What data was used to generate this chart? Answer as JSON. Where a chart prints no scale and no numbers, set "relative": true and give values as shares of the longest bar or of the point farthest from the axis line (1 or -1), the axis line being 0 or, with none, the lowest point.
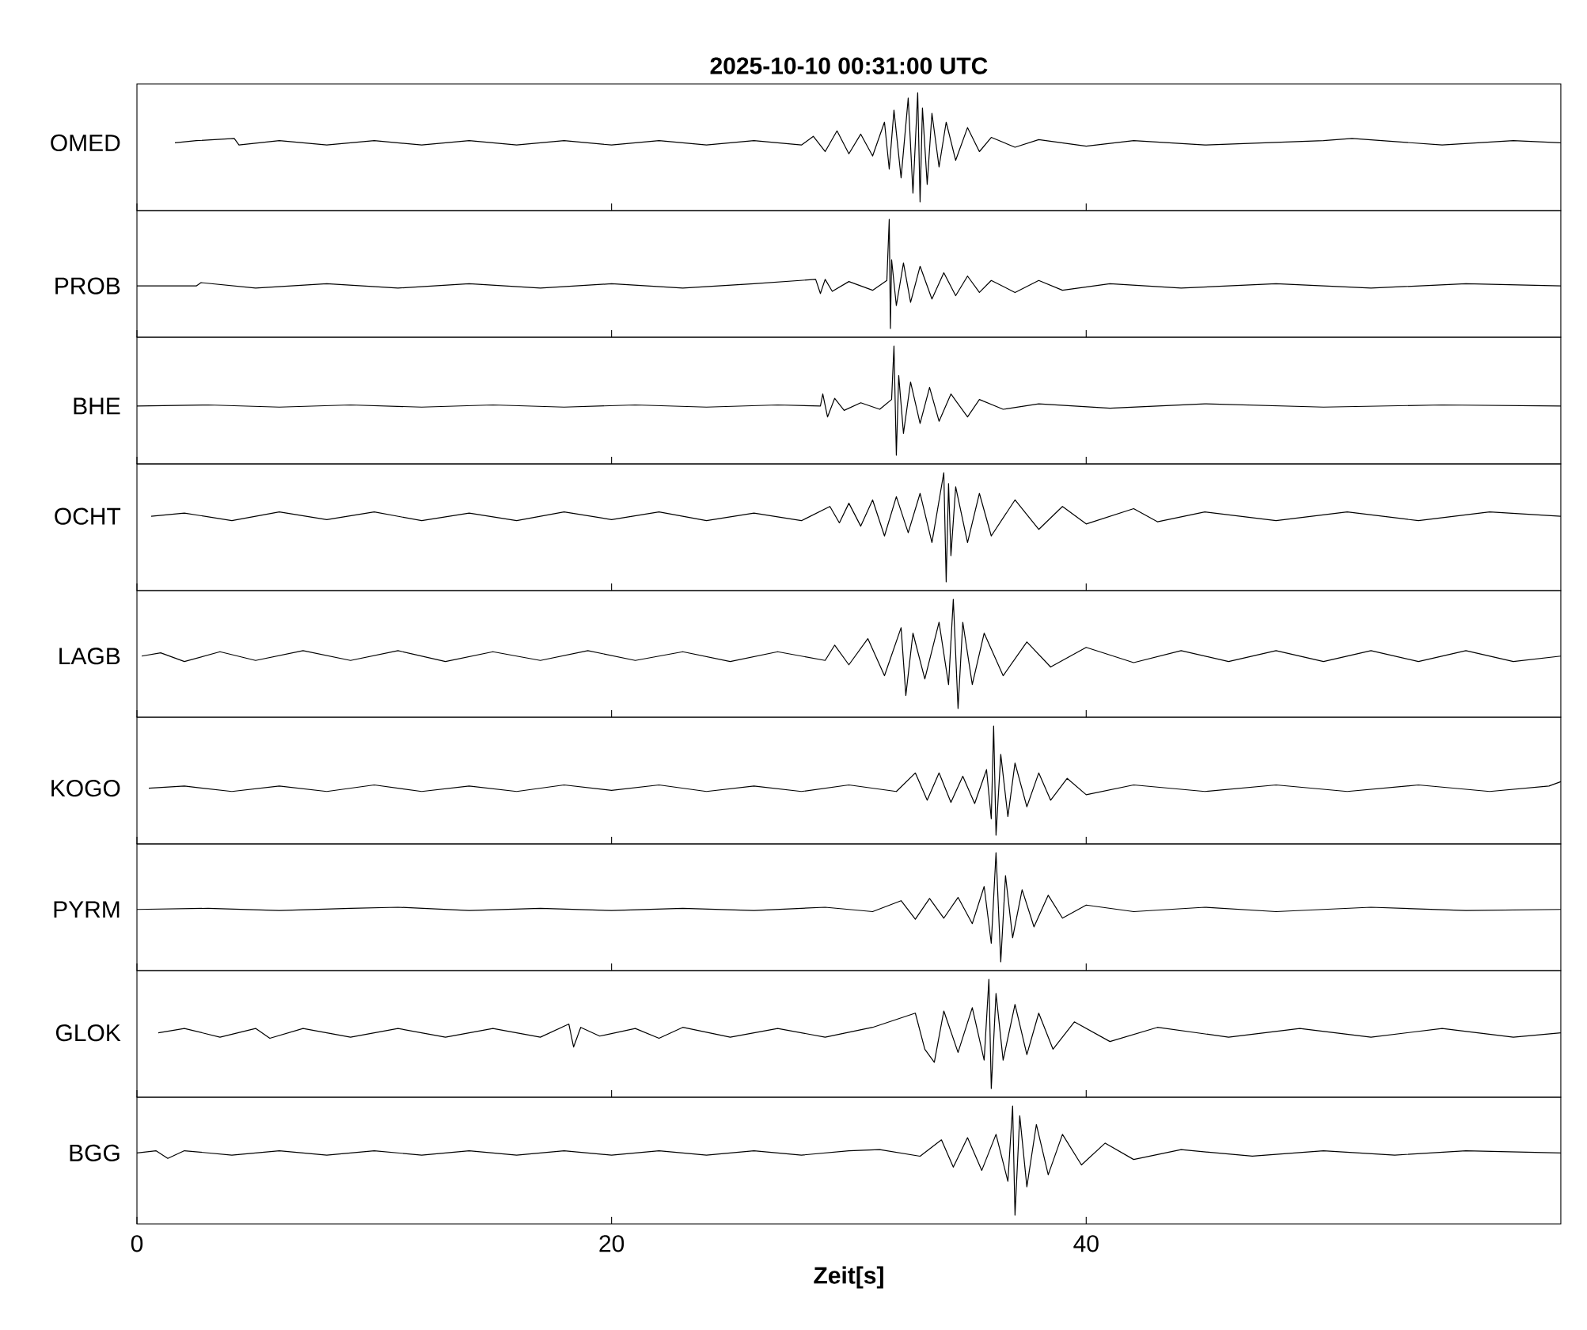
{
  "chart_data": [
    {
      "type": "line",
      "relative": true,
      "title": "2025-10-10  00:31:00 UTC",
      "xlim": [
        0,
        60
      ],
      "xticks": [
        0,
        20,
        40
      ],
      "tick_labels": false,
      "series": [
        {
          "name": "OMED",
          "color": "#000000",
          "x": [
            1.6,
            2.5,
            4.1,
            4.3,
            6,
            8,
            10,
            12,
            14,
            16,
            18,
            20,
            22,
            24,
            26,
            28,
            28.5,
            29,
            29.5,
            30,
            30.5,
            31,
            31.5,
            31.7,
            31.9,
            32.2,
            32.5,
            32.7,
            32.9,
            33.0,
            33.1,
            33.3,
            33.5,
            33.8,
            34.1,
            34.5,
            35,
            35.5,
            36,
            37,
            38,
            40,
            42,
            45,
            50,
            51.2,
            55,
            58,
            60
          ],
          "values": [
            0.54,
            0.56,
            0.58,
            0.52,
            0.56,
            0.52,
            0.56,
            0.52,
            0.56,
            0.52,
            0.56,
            0.52,
            0.56,
            0.52,
            0.56,
            0.52,
            0.6,
            0.46,
            0.65,
            0.44,
            0.62,
            0.42,
            0.73,
            0.3,
            0.84,
            0.22,
            0.95,
            0.08,
            1,
            0,
            0.86,
            0.16,
            0.81,
            0.32,
            0.73,
            0.38,
            0.68,
            0.46,
            0.59,
            0.5,
            0.57,
            0.51,
            0.56,
            0.52,
            0.56,
            0.58,
            0.52,
            0.56,
            0.54
          ]
        }
      ]
    },
    {
      "type": "line",
      "relative": true,
      "xlim": [
        0,
        60
      ],
      "xticks": [
        0,
        20,
        40
      ],
      "tick_labels": false,
      "series": [
        {
          "name": "PROB",
          "color": "#000000",
          "x": [
            0,
            2.5,
            2.7,
            5,
            8,
            11,
            14,
            17,
            20,
            23,
            26,
            28.6,
            28.8,
            29,
            29.3,
            30,
            31,
            31.6,
            31.7,
            31.75,
            31.8,
            32,
            32.3,
            32.6,
            33,
            33.5,
            34,
            34.5,
            35,
            35.5,
            36,
            37,
            38,
            39,
            41,
            44,
            48,
            52,
            56,
            60
          ],
          "values": [
            0.39,
            0.39,
            0.42,
            0.37,
            0.41,
            0.37,
            0.41,
            0.37,
            0.41,
            0.37,
            0.41,
            0.45,
            0.32,
            0.45,
            0.34,
            0.43,
            0.35,
            0.44,
            1,
            0,
            0.63,
            0.21,
            0.6,
            0.24,
            0.57,
            0.27,
            0.51,
            0.3,
            0.48,
            0.33,
            0.44,
            0.33,
            0.44,
            0.35,
            0.41,
            0.37,
            0.41,
            0.37,
            0.41,
            0.39
          ]
        }
      ]
    },
    {
      "type": "line",
      "relative": true,
      "xlim": [
        0,
        60
      ],
      "xticks": [
        0,
        20,
        40
      ],
      "tick_labels": false,
      "series": [
        {
          "name": "BHE",
          "color": "#000000",
          "x": [
            0,
            3,
            6,
            9,
            12,
            15,
            18,
            21,
            24,
            27,
            28.8,
            28.9,
            29.1,
            29.4,
            29.8,
            30.5,
            31.3,
            31.8,
            31.9,
            32.0,
            32.1,
            32.3,
            32.6,
            33,
            33.4,
            33.8,
            34.3,
            35,
            35.5,
            36.5,
            38,
            41,
            45,
            50,
            55,
            60
          ],
          "values": [
            0.45,
            0.46,
            0.44,
            0.46,
            0.44,
            0.46,
            0.44,
            0.46,
            0.44,
            0.46,
            0.45,
            0.56,
            0.35,
            0.52,
            0.41,
            0.48,
            0.42,
            0.51,
            1,
            0,
            0.73,
            0.2,
            0.67,
            0.29,
            0.62,
            0.31,
            0.56,
            0.35,
            0.51,
            0.42,
            0.47,
            0.43,
            0.47,
            0.44,
            0.46,
            0.45
          ]
        }
      ]
    },
    {
      "type": "line",
      "relative": true,
      "xlim": [
        0,
        60
      ],
      "xticks": [
        0,
        20,
        40
      ],
      "tick_labels": false,
      "series": [
        {
          "name": "OCHT",
          "color": "#000000",
          "x": [
            0.6,
            2,
            4,
            6,
            8,
            10,
            12,
            14,
            16,
            18,
            20,
            22,
            24,
            26,
            28,
            29.2,
            29.6,
            30,
            30.5,
            31,
            31.5,
            32,
            32.5,
            33,
            33.5,
            34,
            34.1,
            34.2,
            34.3,
            34.5,
            35,
            35.5,
            36,
            37,
            38,
            39,
            40,
            42,
            43,
            45,
            48,
            51,
            54,
            57,
            60
          ],
          "values": [
            0.6,
            0.63,
            0.56,
            0.64,
            0.57,
            0.64,
            0.56,
            0.63,
            0.56,
            0.64,
            0.57,
            0.64,
            0.56,
            0.63,
            0.56,
            0.69,
            0.54,
            0.72,
            0.51,
            0.75,
            0.42,
            0.78,
            0.45,
            0.81,
            0.36,
            1,
            0,
            0.9,
            0.24,
            0.87,
            0.36,
            0.81,
            0.42,
            0.75,
            0.48,
            0.69,
            0.53,
            0.67,
            0.55,
            0.64,
            0.56,
            0.64,
            0.56,
            0.64,
            0.6
          ]
        }
      ]
    },
    {
      "type": "line",
      "relative": true,
      "xlim": [
        0,
        60
      ],
      "xticks": [
        0,
        20,
        40
      ],
      "tick_labels": false,
      "series": [
        {
          "name": "LAGB",
          "color": "#000000",
          "x": [
            0.2,
            1,
            2,
            3.5,
            5,
            7,
            9,
            11,
            13,
            15,
            17,
            19,
            21,
            23,
            25,
            27,
            29,
            29.4,
            30,
            30.8,
            31.5,
            32.2,
            32.4,
            32.7,
            33.2,
            33.8,
            34.2,
            34.4,
            34.6,
            34.8,
            35.2,
            35.7,
            36.5,
            37.5,
            38.5,
            40,
            42,
            44,
            46,
            48,
            50,
            52,
            54,
            56,
            58,
            60
          ],
          "values": [
            0.48,
            0.51,
            0.43,
            0.52,
            0.44,
            0.53,
            0.44,
            0.53,
            0.43,
            0.52,
            0.44,
            0.53,
            0.44,
            0.52,
            0.43,
            0.52,
            0.44,
            0.58,
            0.4,
            0.64,
            0.3,
            0.74,
            0.12,
            0.69,
            0.27,
            0.79,
            0.22,
            1,
            0,
            0.79,
            0.22,
            0.69,
            0.3,
            0.61,
            0.38,
            0.56,
            0.42,
            0.53,
            0.43,
            0.53,
            0.43,
            0.53,
            0.43,
            0.53,
            0.43,
            0.48
          ]
        }
      ]
    },
    {
      "type": "line",
      "relative": true,
      "xlim": [
        0,
        60
      ],
      "xticks": [
        0,
        20,
        40
      ],
      "tick_labels": false,
      "series": [
        {
          "name": "KOGO",
          "color": "#000000",
          "x": [
            0.5,
            2,
            4,
            6,
            8,
            10,
            12,
            14,
            16,
            18,
            20,
            22,
            24,
            26,
            28,
            30,
            32,
            32.8,
            33.3,
            33.8,
            34.3,
            34.8,
            35.3,
            35.8,
            36.0,
            36.1,
            36.2,
            36.4,
            36.7,
            37,
            37.5,
            38,
            38.5,
            39.2,
            40,
            42,
            45,
            48,
            51,
            54,
            57,
            59.5,
            60
          ],
          "values": [
            0.43,
            0.45,
            0.4,
            0.45,
            0.4,
            0.46,
            0.4,
            0.45,
            0.4,
            0.46,
            0.41,
            0.46,
            0.4,
            0.45,
            0.4,
            0.46,
            0.4,
            0.57,
            0.32,
            0.57,
            0.3,
            0.54,
            0.29,
            0.6,
            0.15,
            1,
            0,
            0.74,
            0.17,
            0.66,
            0.26,
            0.57,
            0.32,
            0.52,
            0.37,
            0.46,
            0.4,
            0.46,
            0.4,
            0.46,
            0.4,
            0.45,
            0.49
          ]
        }
      ]
    },
    {
      "type": "line",
      "relative": true,
      "xlim": [
        0,
        60
      ],
      "xticks": [
        0,
        20,
        40
      ],
      "tick_labels": false,
      "series": [
        {
          "name": "PYRM",
          "color": "#000000",
          "x": [
            0,
            3,
            6,
            9,
            11,
            14,
            17,
            20,
            23,
            26,
            29,
            31,
            32.2,
            32.8,
            33.4,
            34,
            34.6,
            35.2,
            35.7,
            36.0,
            36.2,
            36.4,
            36.6,
            36.9,
            37.3,
            37.8,
            38.4,
            39,
            40,
            42,
            45,
            48,
            52,
            56,
            60
          ],
          "values": [
            0.48,
            0.49,
            0.47,
            0.49,
            0.5,
            0.47,
            0.49,
            0.47,
            0.49,
            0.47,
            0.5,
            0.46,
            0.56,
            0.39,
            0.58,
            0.4,
            0.59,
            0.35,
            0.69,
            0.17,
            1,
            0,
            0.79,
            0.22,
            0.66,
            0.32,
            0.61,
            0.4,
            0.52,
            0.46,
            0.5,
            0.46,
            0.5,
            0.47,
            0.48
          ]
        }
      ]
    },
    {
      "type": "line",
      "relative": true,
      "xlim": [
        0,
        60
      ],
      "xticks": [
        0,
        20,
        40
      ],
      "tick_labels": false,
      "series": [
        {
          "name": "GLOK",
          "color": "#000000",
          "x": [
            0.9,
            2,
            3.5,
            5,
            5.6,
            7,
            9,
            11,
            13,
            15,
            17,
            18.2,
            18.4,
            18.7,
            19.5,
            21,
            22,
            23,
            25,
            27,
            29,
            31,
            32.8,
            33.2,
            33.6,
            34,
            34.6,
            35.2,
            35.7,
            35.9,
            36.0,
            36.2,
            36.5,
            37,
            37.5,
            38,
            38.6,
            39.5,
            41,
            43,
            46,
            49,
            52,
            55,
            58,
            60
          ],
          "values": [
            0.51,
            0.55,
            0.47,
            0.55,
            0.46,
            0.55,
            0.47,
            0.55,
            0.47,
            0.55,
            0.47,
            0.59,
            0.38,
            0.56,
            0.48,
            0.55,
            0.46,
            0.56,
            0.47,
            0.55,
            0.47,
            0.56,
            0.69,
            0.36,
            0.24,
            0.71,
            0.33,
            0.74,
            0.26,
            1,
            0,
            0.87,
            0.26,
            0.77,
            0.31,
            0.69,
            0.36,
            0.61,
            0.43,
            0.56,
            0.47,
            0.55,
            0.47,
            0.55,
            0.47,
            0.51
          ]
        }
      ]
    },
    {
      "type": "line",
      "relative": true,
      "xlabel": "Zeit[s]",
      "xlim": [
        0,
        60
      ],
      "xticks": [
        0,
        20,
        40
      ],
      "tick_labels": "x",
      "series": [
        {
          "name": "BGG",
          "color": "#000000",
          "x": [
            0,
            0.8,
            1.3,
            2,
            4,
            6,
            8,
            10,
            12,
            14,
            16,
            18,
            20,
            22,
            24,
            26,
            28,
            30,
            31.3,
            33,
            33.9,
            34.4,
            35,
            35.6,
            36.2,
            36.7,
            36.9,
            37.0,
            37.2,
            37.5,
            37.9,
            38.4,
            39,
            39.8,
            40.8,
            42,
            44,
            47,
            50,
            53,
            56,
            60
          ],
          "values": [
            0.57,
            0.59,
            0.52,
            0.59,
            0.55,
            0.59,
            0.55,
            0.59,
            0.55,
            0.59,
            0.55,
            0.59,
            0.55,
            0.59,
            0.55,
            0.59,
            0.55,
            0.59,
            0.6,
            0.54,
            0.69,
            0.44,
            0.71,
            0.41,
            0.74,
            0.31,
            1,
            0,
            0.91,
            0.26,
            0.83,
            0.37,
            0.74,
            0.46,
            0.66,
            0.51,
            0.6,
            0.54,
            0.59,
            0.55,
            0.59,
            0.57
          ]
        }
      ]
    }
  ]
}
